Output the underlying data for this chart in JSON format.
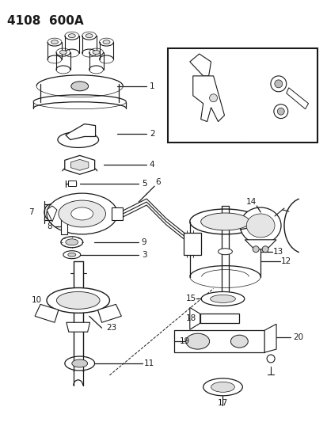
{
  "title": "4108  600A",
  "bg_color": "#ffffff",
  "line_color": "#1a1a1a",
  "title_fontsize": 11,
  "label_fontsize": 7.5,
  "figsize": [
    4.14,
    5.33
  ],
  "dpi": 100
}
